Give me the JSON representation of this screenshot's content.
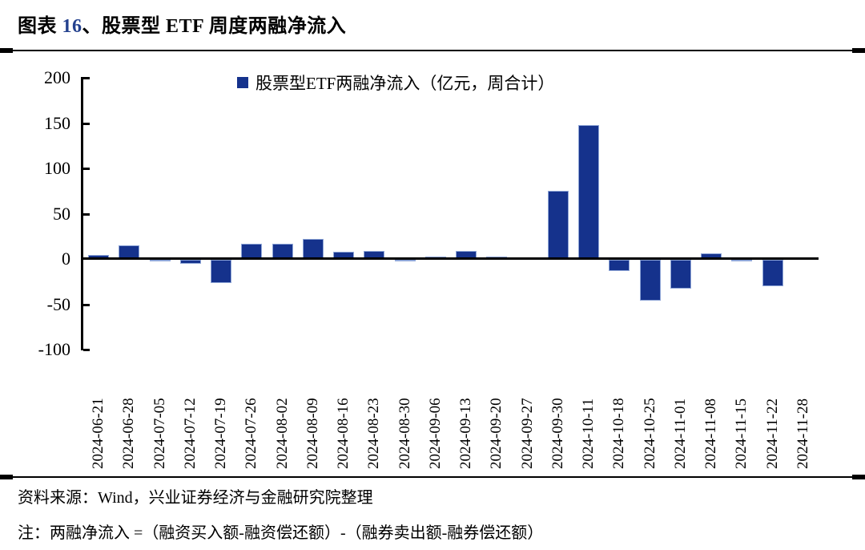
{
  "header": {
    "title_prefix": "图表 ",
    "title_number": "16",
    "title_suffix": "、股票型 ETF 周度两融净流入"
  },
  "colors": {
    "bar_fill": "#15328C",
    "bar_border": "#8EA5D6",
    "title_number": "#24418E",
    "axis": "#000000"
  },
  "chart_data": {
    "type": "bar",
    "title": "图表 16、股票型 ETF 周度两融净流入",
    "legend": "股票型ETF两融净流入（亿元，周合计）",
    "legend_position": "top-center",
    "grid": false,
    "unit": "亿元",
    "categories": [
      "2024-06-21",
      "2024-06-28",
      "2024-07-05",
      "2024-07-12",
      "2024-07-19",
      "2024-07-26",
      "2024-08-02",
      "2024-08-09",
      "2024-08-16",
      "2024-08-23",
      "2024-08-30",
      "2024-09-06",
      "2024-09-13",
      "2024-09-20",
      "2024-09-27",
      "2024-09-30",
      "2024-10-11",
      "2024-10-18",
      "2024-10-25",
      "2024-11-01",
      "2024-11-08",
      "2024-11-15",
      "2024-11-22",
      "2024-11-28"
    ],
    "values": [
      4,
      15,
      -2,
      -4,
      -26,
      17,
      17,
      22,
      8,
      9,
      -1,
      3,
      9,
      3,
      0,
      75,
      148,
      -12,
      -45,
      -32,
      6,
      -1,
      -29,
      0
    ],
    "ylim": [
      -100,
      200
    ],
    "y_ticks": [
      200,
      150,
      100,
      50,
      0,
      -50,
      -100
    ],
    "xlabel": "",
    "ylabel": ""
  },
  "footer": {
    "source": "资料来源：Wind，兴业证券经济与金融研究院整理",
    "note": "注：两融净流入 =（融资买入额-融资偿还额）-（融券卖出额-融券偿还额）"
  }
}
